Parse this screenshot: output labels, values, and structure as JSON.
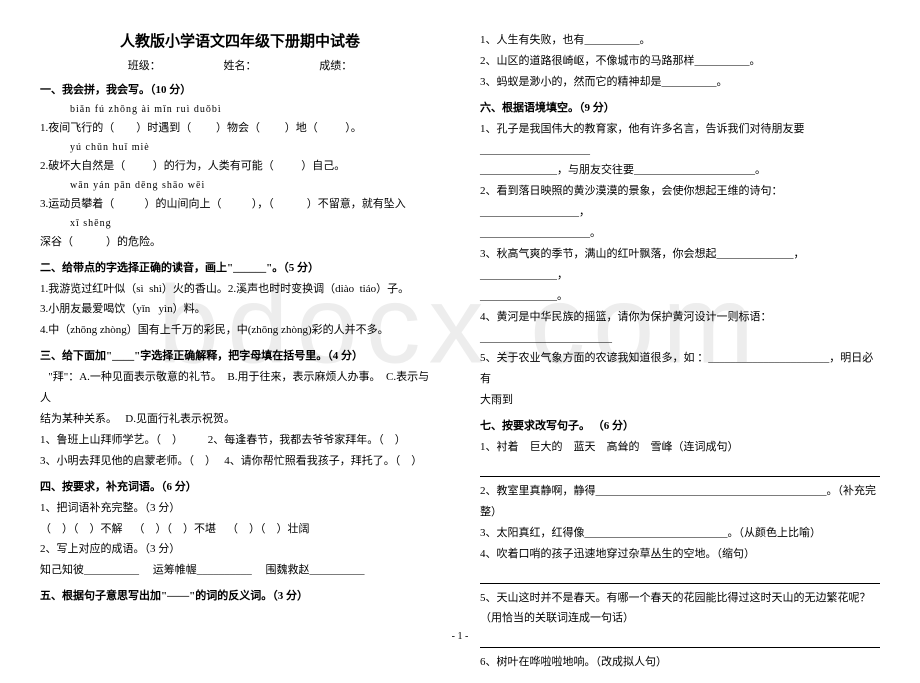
{
  "watermark": "bdocx.com",
  "title": "人教版小学语文四年级下册期中试卷",
  "meta": {
    "class": "班级：",
    "name": "姓名：",
    "score": "成绩："
  },
  "left": {
    "s1": "一、我会拼，我会写。（10 分）",
    "py1": "biǎn fú          zhōng  ài            mǐn ruì        duǒbì",
    "l1a": "1.夜间飞行的（        ）时遇到（         ）物会（         ）地（          ）。",
    "py2": "yú  chǔn                        huǐ  miè",
    "l2a": "2.破坏大自然是（          ）的行为，人类有可能（          ）自己。",
    "py3": "wān  yán            pān  dēng         shāo   wēi",
    "l3a": "3.运动员攀着（           ）的山间向上（           ），（            ）不留意，就有坠入",
    "py4": "xī   shēng",
    "l3b": "深谷（            ）的危险。",
    "s2": "二、给带点的字选择正确的读音，画上\"______\"。（5 分）",
    "l2_1": "1.我游览过红叶似（sì  shì）火的香山。2.溪声也时时变换调（diào  tiáo）子。",
    "l2_2": "3.小朋友最爱喝饮（yǐn   yìn）料。",
    "l2_3": "4.中（zhōng zhòng）国有上千万的彩民，中(zhōng zhòng)彩的人并不多。",
    "s3": "三、给下面加\"____\"字选择正确解释，把字母填在括号里。（4 分）",
    "l3_1": "   \"拜\"：A.一种见面表示敬意的礼节。  B.用于往来，表示麻烦人办事。  C.表示与人",
    "l3_2": "结为某种关系。   D.见面行礼表示祝贺。",
    "l3_3": "1、鲁班上山拜师学艺。（    ）         2、每逢春节，我都去爷爷家拜年。（    ）",
    "l3_4": "3、小明去拜见他的启蒙老师。（    ）   4、请你帮忙照看我孩子，拜托了。（    ）",
    "s4": "四、按要求，补充词语。（6 分）",
    "l4_1": "1、把词语补充完整。（3 分）",
    "l4_2": "（    ）（    ）不解    （    ）（    ）不堪    （    ）（    ）壮阔",
    "l4_3": "2、写上对应的成语。（3 分）",
    "l4_4": "知己知彼__________     运筹帷幄__________     围魏救赵__________",
    "s5": "五、根据句子意思写出加\"——\"的词的反义词。（3 分）"
  },
  "right": {
    "r1": "1、人生有失败，也有__________。",
    "r2": "2、山区的道路很崎岖，不像城市的马路那样__________。",
    "r3": "3、蚂蚁是渺小的，然而它的精神却是__________。",
    "s6": "六、根据语境填空。（9 分）",
    "r6_1": "1、孔子是我国伟大的教育家，他有许多名言，告诉我们对待朋友要____________________",
    "r6_1b": "______________，与朋友交往要______________________。",
    "r6_2": "2、看到落日映照的黄沙漠漠的景象，会使你想起王维的诗句：__________________，",
    "r6_2b": "____________________。",
    "r6_3": "3、秋高气爽的季节，满山的红叶飘落，你会想起______________，______________，",
    "r6_3b": "______________。",
    "r6_4": "4、黄河是中华民族的摇篮，请你为保护黄河设计一则标语：________________________",
    "r6_5": "5、关于农业气象方面的农谚我知道很多，如 ：______________________，明日必有",
    "r6_5b": "大雨到",
    "s7": "七、按要求改写句子。     （6 分）",
    "r7_1": "1、衬着    巨大的    蓝天    高耸的    雪峰（连词成句）",
    "r7_2": "2、教室里真静啊，静得__________________________________________。（补充完",
    "r7_2b": "整）",
    "r7_3": "3、太阳真红，红得像__________________________。（从颜色上比喻）",
    "r7_4": "4、吹着口哨的孩子迅速地穿过杂草丛生的空地。（缩句）",
    "r7_5": "5、天山这时并不是春天。有哪一个春天的花园能比得过这时天山的无边繁花呢？",
    "r7_5b": "（用恰当的关联词连成一句话）",
    "r7_6": "6、树叶在哗啦啦地响。（改成拟人句）"
  },
  "footer": "- 1 -"
}
